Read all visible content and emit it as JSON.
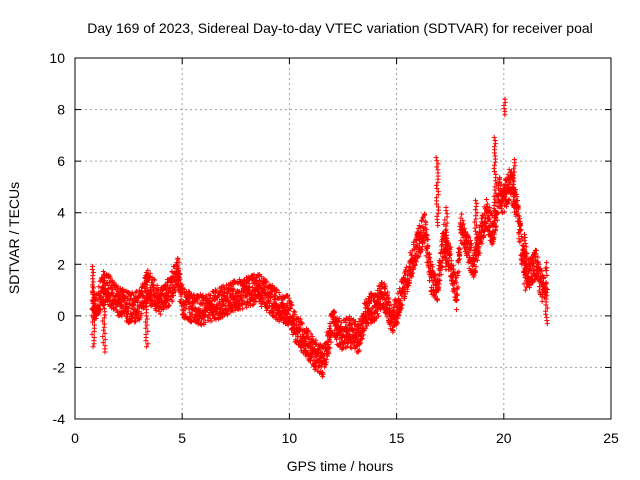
{
  "chart_data": {
    "type": "scatter",
    "title": "Day 169 of 2023, Sidereal Day-to-day VTEC variation (SDTVAR) for receiver poal",
    "xlabel": "GPS time / hours",
    "ylabel": "SDTVAR / TECUs",
    "xlim": [
      0,
      25
    ],
    "ylim": [
      -4,
      10
    ],
    "xticks": [
      0,
      5,
      10,
      15,
      20,
      25
    ],
    "yticks": [
      -4,
      -2,
      0,
      2,
      4,
      6,
      8,
      10
    ],
    "grid": true,
    "marker": "+",
    "series": [
      {
        "name": "SDTVAR",
        "color": "#ff0000",
        "trend": [
          [
            0.8,
            0.6
          ],
          [
            1.0,
            0.3
          ],
          [
            1.3,
            1.1
          ],
          [
            1.6,
            1.0
          ],
          [
            2.0,
            0.6
          ],
          [
            2.5,
            0.3
          ],
          [
            3.0,
            0.4
          ],
          [
            3.4,
            1.2
          ],
          [
            3.6,
            0.9
          ],
          [
            4.0,
            0.6
          ],
          [
            4.5,
            1.1
          ],
          [
            4.8,
            1.8
          ],
          [
            5.0,
            0.5
          ],
          [
            5.5,
            0.3
          ],
          [
            6.0,
            0.2
          ],
          [
            6.5,
            0.4
          ],
          [
            7.0,
            0.6
          ],
          [
            7.5,
            0.8
          ],
          [
            8.0,
            0.9
          ],
          [
            8.5,
            1.1
          ],
          [
            9.0,
            0.7
          ],
          [
            9.5,
            0.4
          ],
          [
            10.0,
            0.2
          ],
          [
            10.3,
            -0.5
          ],
          [
            10.8,
            -1.0
          ],
          [
            11.2,
            -1.5
          ],
          [
            11.6,
            -1.8
          ],
          [
            12.0,
            -0.3
          ],
          [
            12.4,
            -0.8
          ],
          [
            12.8,
            -0.6
          ],
          [
            13.2,
            -0.9
          ],
          [
            13.6,
            0.2
          ],
          [
            14.0,
            0.4
          ],
          [
            14.4,
            0.8
          ],
          [
            14.8,
            -0.2
          ],
          [
            15.0,
            0.2
          ],
          [
            15.3,
            1.0
          ],
          [
            15.7,
            2.0
          ],
          [
            16.0,
            2.8
          ],
          [
            16.3,
            3.4
          ],
          [
            16.6,
            1.5
          ],
          [
            16.9,
            1.0
          ],
          [
            17.2,
            3.0
          ],
          [
            17.5,
            2.2
          ],
          [
            17.8,
            0.8
          ],
          [
            18.0,
            3.5
          ],
          [
            18.3,
            2.6
          ],
          [
            18.6,
            2.0
          ],
          [
            18.9,
            3.0
          ],
          [
            19.2,
            4.0
          ],
          [
            19.5,
            3.2
          ],
          [
            19.8,
            4.8
          ],
          [
            20.0,
            4.5
          ],
          [
            20.3,
            5.2
          ],
          [
            20.6,
            4.2
          ],
          [
            20.9,
            2.2
          ],
          [
            21.2,
            1.6
          ],
          [
            21.5,
            2.0
          ],
          [
            21.8,
            1.0
          ],
          [
            22.0,
            1.5
          ]
        ],
        "bursts": [
          [
            0.85,
            -1.2,
            2.0
          ],
          [
            1.35,
            -1.4,
            1.8
          ],
          [
            3.35,
            -1.2,
            1.7
          ],
          [
            4.8,
            1.0,
            2.3
          ],
          [
            16.9,
            3.5,
            6.2
          ],
          [
            17.3,
            1.8,
            4.3
          ],
          [
            18.7,
            2.2,
            4.6
          ],
          [
            19.6,
            3.8,
            7.0
          ],
          [
            20.05,
            7.8,
            8.4
          ],
          [
            20.5,
            4.5,
            6.1
          ],
          [
            21.0,
            1.0,
            3.2
          ],
          [
            22.0,
            -0.3,
            1.1
          ]
        ]
      }
    ]
  }
}
